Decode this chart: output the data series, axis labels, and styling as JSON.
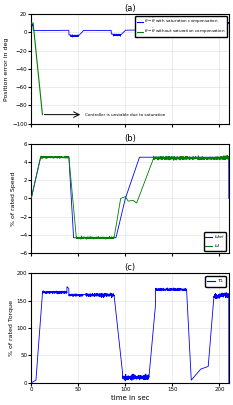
{
  "title_a": "(a)",
  "title_b": "(b)",
  "title_c": "(c)",
  "xlabel": "time in sec",
  "ylabel_a": "Position error in deg",
  "ylabel_b": "% of rated Speed",
  "ylabel_c": "% of rated Torque",
  "xlim": [
    0,
    210
  ],
  "ylim_a": [
    -100,
    20
  ],
  "ylim_b": [
    -6,
    6
  ],
  "ylim_c": [
    0,
    200
  ],
  "yticks_a": [
    -100,
    -80,
    -60,
    -40,
    -20,
    0,
    20
  ],
  "yticks_b": [
    -6,
    -4,
    -2,
    0,
    2,
    4,
    6
  ],
  "yticks_c": [
    0,
    50,
    100,
    150,
    200
  ],
  "xticks": [
    0,
    50,
    100,
    150,
    200
  ],
  "color_blue": "#0000FF",
  "color_green": "#008000",
  "background": "#FFFFFF",
  "grid_color": "#DDDDDD"
}
